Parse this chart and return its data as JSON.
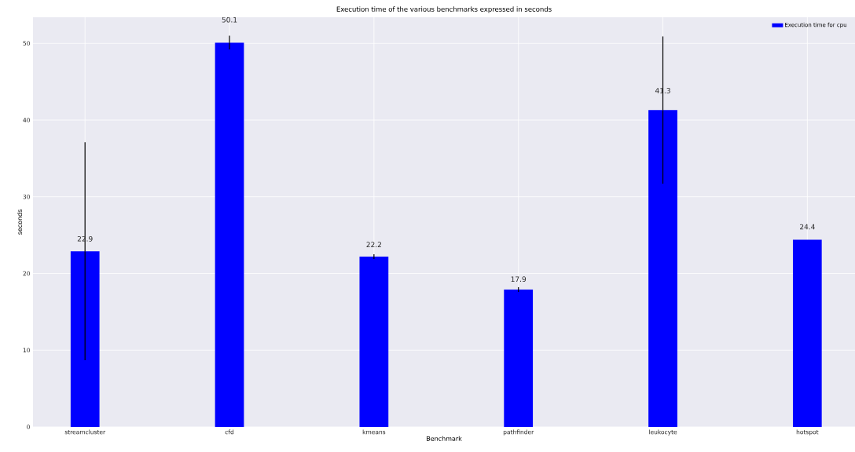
{
  "chart_data": {
    "type": "bar",
    "title": "Execution time of the various benchmarks expressed in seconds",
    "xlabel": "Benchmark",
    "ylabel": "seconds",
    "categories": [
      "streamcluster",
      "cfd",
      "kmeans",
      "pathfinder",
      "leukocyte",
      "hotspot"
    ],
    "series": [
      {
        "name": "Execution time for cpu",
        "color": "#0000ff",
        "values": [
          22.9,
          50.1,
          22.2,
          17.9,
          41.3,
          24.4
        ],
        "errors": [
          14.2,
          0.9,
          0.3,
          0.3,
          9.6,
          null
        ]
      }
    ],
    "data_labels": true,
    "ylim": [
      0,
      53.4
    ],
    "yticks": [
      0,
      10,
      20,
      30,
      40,
      50
    ],
    "grid": true,
    "legend": "top right"
  }
}
